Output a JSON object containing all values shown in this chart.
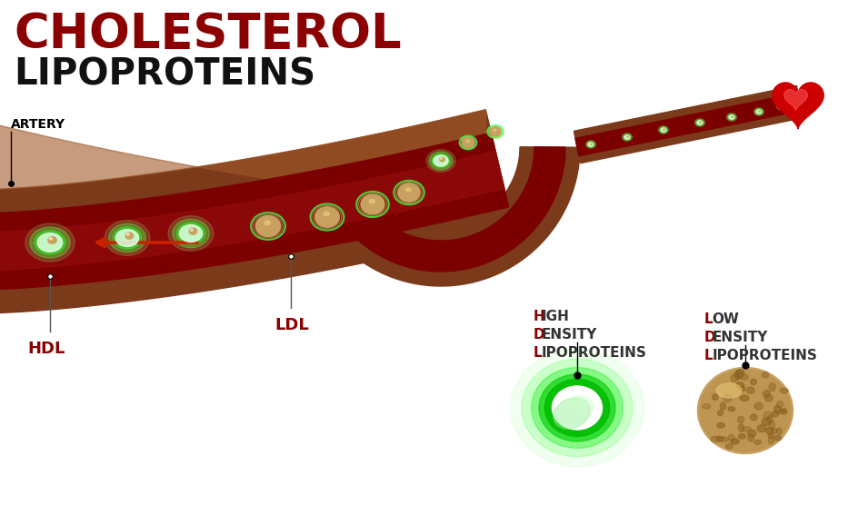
{
  "title_cholesterol": "CHOLESTEROL",
  "title_lipoproteins": "LIPOPROTEINS",
  "title_color": "#8B0000",
  "subtitle_color": "#111111",
  "bg_color": "#ffffff",
  "label_artery": "ARTERY",
  "label_hdl": "HDL",
  "label_ldl": "LDL",
  "artery_outer_color": "#7B3A1A",
  "artery_mid_color": "#9B4820",
  "artery_inner_color": "#7B0000",
  "artery_lumen_color": "#9B1010",
  "hdl_green_outer": "#44FF44",
  "hdl_green_inner": "#00CC00",
  "hdl_white": "#f0fff0",
  "ldl_tan": "#C8A060",
  "ldl_dark": "#8B6020",
  "annotation_color": "#8B0000",
  "black": "#000000",
  "gray_line": "#555555"
}
